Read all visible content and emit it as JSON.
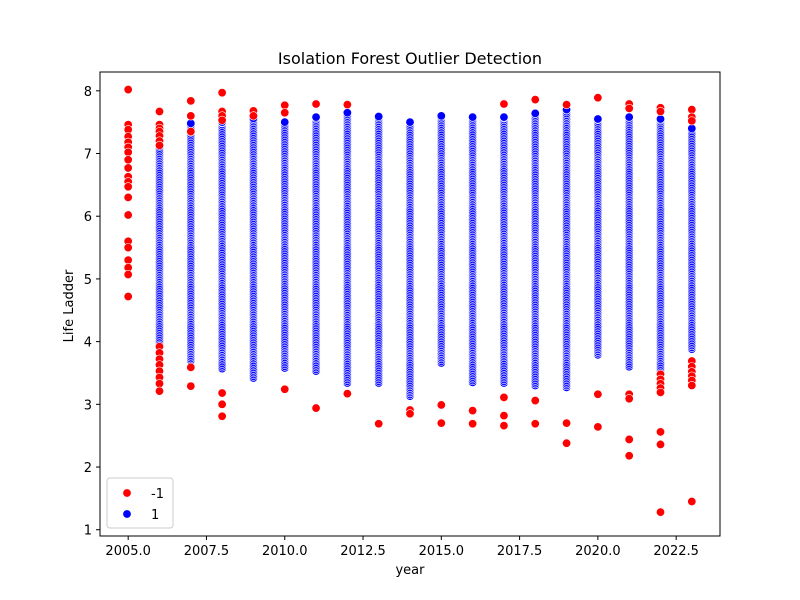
{
  "chart_data": {
    "type": "scatter",
    "title": "Isolation Forest Outlier Detection",
    "xlabel": "year",
    "ylabel": "Life Ladder",
    "xlim": [
      2004.1,
      2023.9
    ],
    "ylim": [
      0.9,
      8.3
    ],
    "xticks": [
      2005.0,
      2007.5,
      2010.0,
      2012.5,
      2015.0,
      2017.5,
      2020.0,
      2022.5
    ],
    "xtick_labels": [
      "2005.0",
      "2007.5",
      "2010.0",
      "2012.5",
      "2015.0",
      "2017.5",
      "2020.0",
      "2022.5"
    ],
    "yticks": [
      1,
      2,
      3,
      4,
      5,
      6,
      7,
      8
    ],
    "ytick_labels": [
      "1",
      "2",
      "3",
      "4",
      "5",
      "6",
      "7",
      "8"
    ],
    "grid": false,
    "legend_position": "lower-left",
    "series": [
      {
        "name": "-1",
        "color": "#ff0000",
        "points": [
          [
            2005,
            8.02
          ],
          [
            2005,
            7.46
          ],
          [
            2005,
            7.38
          ],
          [
            2005,
            7.27
          ],
          [
            2005,
            7.18
          ],
          [
            2005,
            7.1
          ],
          [
            2005,
            7.02
          ],
          [
            2005,
            6.9
          ],
          [
            2005,
            6.77
          ],
          [
            2005,
            6.63
          ],
          [
            2005,
            6.55
          ],
          [
            2005,
            6.47
          ],
          [
            2005,
            6.3
          ],
          [
            2005,
            6.02
          ],
          [
            2005,
            5.6
          ],
          [
            2005,
            5.5
          ],
          [
            2005,
            5.3
          ],
          [
            2005,
            5.18
          ],
          [
            2005,
            5.07
          ],
          [
            2005,
            4.72
          ],
          [
            2006,
            7.67
          ],
          [
            2006,
            7.46
          ],
          [
            2006,
            7.4
          ],
          [
            2006,
            7.35
          ],
          [
            2006,
            7.28
          ],
          [
            2006,
            7.2
          ],
          [
            2006,
            7.13
          ],
          [
            2006,
            3.92
          ],
          [
            2006,
            3.82
          ],
          [
            2006,
            3.72
          ],
          [
            2006,
            3.63
          ],
          [
            2006,
            3.53
          ],
          [
            2006,
            3.43
          ],
          [
            2006,
            3.33
          ],
          [
            2006,
            3.21
          ],
          [
            2007,
            7.84
          ],
          [
            2007,
            7.6
          ],
          [
            2007,
            7.35
          ],
          [
            2007,
            3.59
          ],
          [
            2007,
            3.29
          ],
          [
            2008,
            7.97
          ],
          [
            2008,
            7.67
          ],
          [
            2008,
            7.6
          ],
          [
            2008,
            7.53
          ],
          [
            2008,
            3.18
          ],
          [
            2008,
            3.0
          ],
          [
            2008,
            2.81
          ],
          [
            2009,
            7.68
          ],
          [
            2009,
            7.6
          ],
          [
            2010,
            7.77
          ],
          [
            2010,
            7.65
          ],
          [
            2010,
            3.24
          ],
          [
            2011,
            7.79
          ],
          [
            2011,
            2.94
          ],
          [
            2012,
            7.78
          ],
          [
            2012,
            3.17
          ],
          [
            2013,
            2.69
          ],
          [
            2014,
            2.91
          ],
          [
            2014,
            2.85
          ],
          [
            2015,
            2.99
          ],
          [
            2015,
            2.7
          ],
          [
            2016,
            2.9
          ],
          [
            2016,
            2.69
          ],
          [
            2017,
            7.79
          ],
          [
            2017,
            3.11
          ],
          [
            2017,
            2.82
          ],
          [
            2017,
            2.66
          ],
          [
            2018,
            7.86
          ],
          [
            2018,
            3.06
          ],
          [
            2018,
            2.69
          ],
          [
            2019,
            7.78
          ],
          [
            2019,
            2.7
          ],
          [
            2019,
            2.38
          ],
          [
            2020,
            7.89
          ],
          [
            2020,
            3.16
          ],
          [
            2020,
            2.64
          ],
          [
            2021,
            7.79
          ],
          [
            2021,
            7.72
          ],
          [
            2021,
            3.16
          ],
          [
            2021,
            3.09
          ],
          [
            2021,
            2.44
          ],
          [
            2021,
            2.18
          ],
          [
            2022,
            7.73
          ],
          [
            2022,
            7.67
          ],
          [
            2022,
            3.48
          ],
          [
            2022,
            3.4
          ],
          [
            2022,
            3.33
          ],
          [
            2022,
            3.26
          ],
          [
            2022,
            3.19
          ],
          [
            2022,
            2.56
          ],
          [
            2022,
            2.36
          ],
          [
            2022,
            1.28
          ],
          [
            2023,
            7.7
          ],
          [
            2023,
            7.58
          ],
          [
            2023,
            7.52
          ],
          [
            2023,
            3.69
          ],
          [
            2023,
            3.6
          ],
          [
            2023,
            3.52
          ],
          [
            2023,
            3.45
          ],
          [
            2023,
            3.38
          ],
          [
            2023,
            3.3
          ],
          [
            2023,
            1.45
          ]
        ]
      },
      {
        "name": "1",
        "color": "#0000ff",
        "columns": [
          {
            "x": 2006,
            "min": 3.95,
            "max": 7.18
          },
          {
            "x": 2007,
            "min": 3.7,
            "max": 7.48
          },
          {
            "x": 2008,
            "min": 3.57,
            "max": 7.5
          },
          {
            "x": 2009,
            "min": 3.42,
            "max": 7.56
          },
          {
            "x": 2010,
            "min": 3.58,
            "max": 7.5
          },
          {
            "x": 2011,
            "min": 3.53,
            "max": 7.58
          },
          {
            "x": 2012,
            "min": 3.34,
            "max": 7.65
          },
          {
            "x": 2013,
            "min": 3.34,
            "max": 7.59
          },
          {
            "x": 2014,
            "min": 3.13,
            "max": 7.5
          },
          {
            "x": 2015,
            "min": 3.66,
            "max": 7.6
          },
          {
            "x": 2016,
            "min": 3.35,
            "max": 7.58
          },
          {
            "x": 2017,
            "min": 3.34,
            "max": 7.58
          },
          {
            "x": 2018,
            "min": 3.3,
            "max": 7.64
          },
          {
            "x": 2019,
            "min": 3.27,
            "max": 7.7
          },
          {
            "x": 2020,
            "min": 3.79,
            "max": 7.55
          },
          {
            "x": 2021,
            "min": 3.6,
            "max": 7.58
          },
          {
            "x": 2022,
            "min": 3.53,
            "max": 7.55
          },
          {
            "x": 2023,
            "min": 3.88,
            "max": 7.4
          }
        ]
      }
    ]
  }
}
